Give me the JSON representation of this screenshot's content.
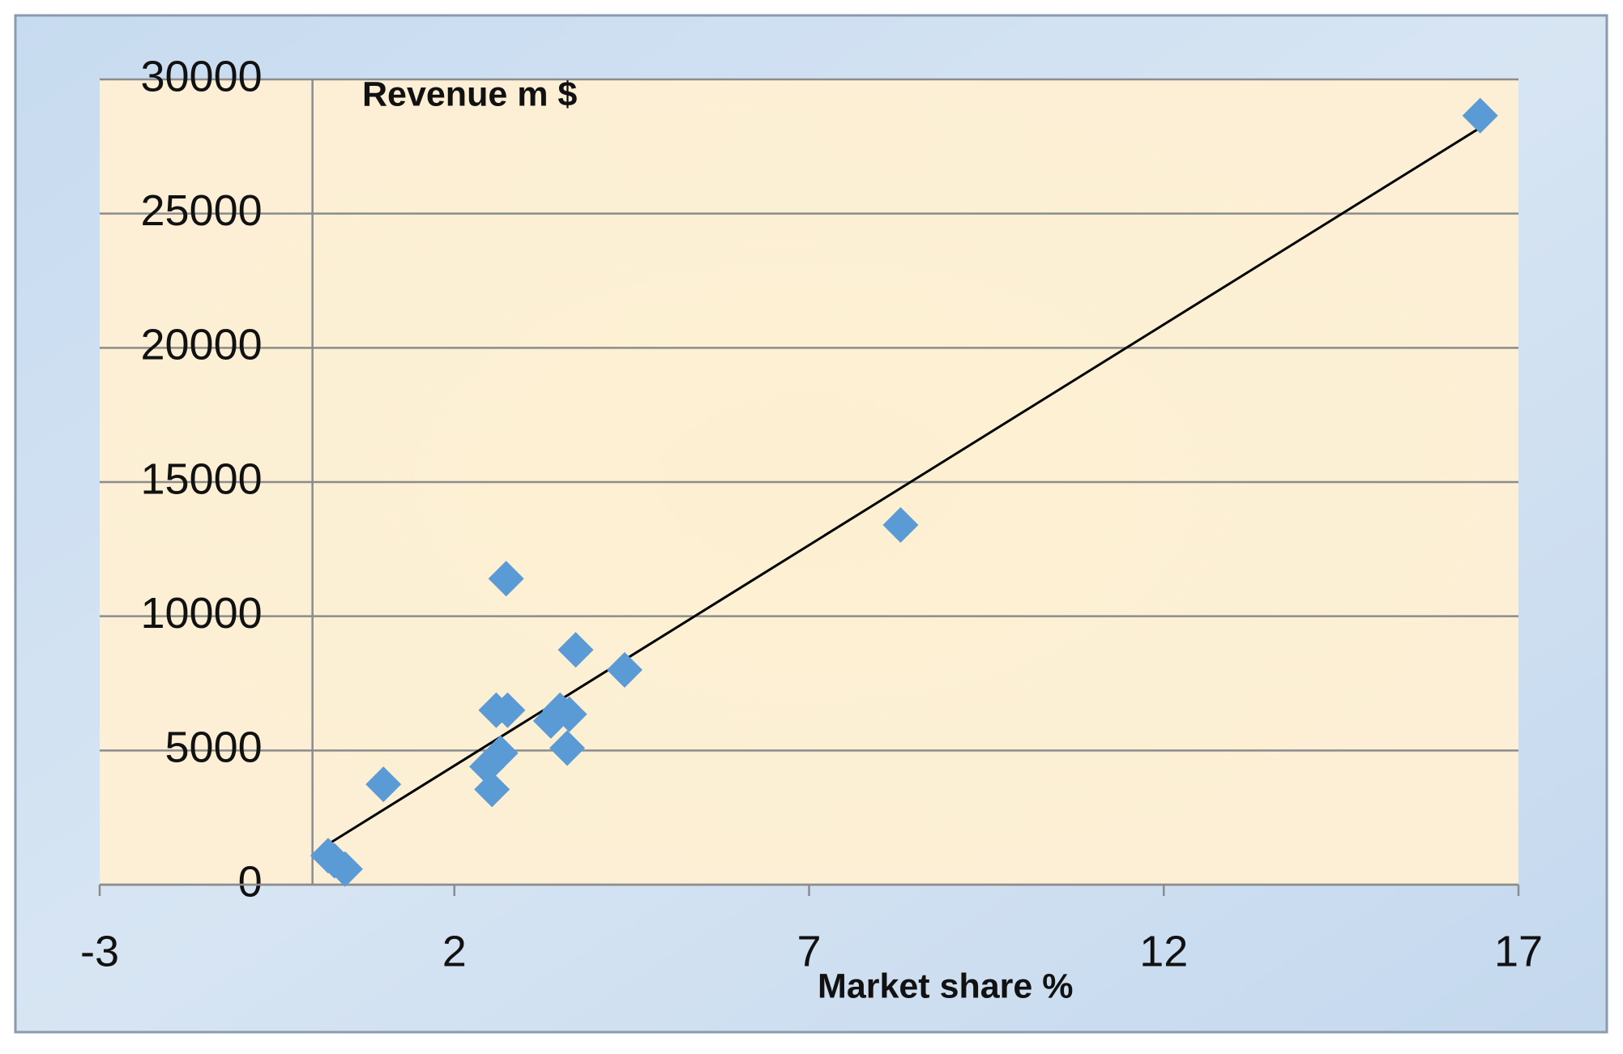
{
  "chart_data": {
    "type": "scatter",
    "y_label": "Revenue m $",
    "x_label": "Market share %",
    "xlim": [
      -3,
      17
    ],
    "xticks": [
      -3,
      2,
      7,
      12,
      17
    ],
    "ylim": [
      0,
      30000
    ],
    "yticks": [
      0,
      5000,
      10000,
      15000,
      20000,
      25000,
      30000
    ],
    "grid": true,
    "series": [
      {
        "color": "#5b9bd5",
        "x": [
          16.46,
          8.29,
          2.73,
          3.71,
          4.4,
          2.59,
          2.75,
          3.49,
          3.62,
          3.36,
          3.59,
          2.65,
          2.46,
          2.53,
          1.0,
          0.22,
          0.31,
          0.46
        ],
        "values": [
          28650,
          13400,
          11400,
          8750,
          8000,
          6500,
          6500,
          6500,
          6350,
          6100,
          5090,
          4900,
          4400,
          3550,
          3740,
          1080,
          890,
          580
        ]
      }
    ],
    "trendline": {
      "color": "#000000",
      "x": [
        0.24,
        16.43
      ],
      "values": [
        1540,
        28150
      ]
    }
  }
}
